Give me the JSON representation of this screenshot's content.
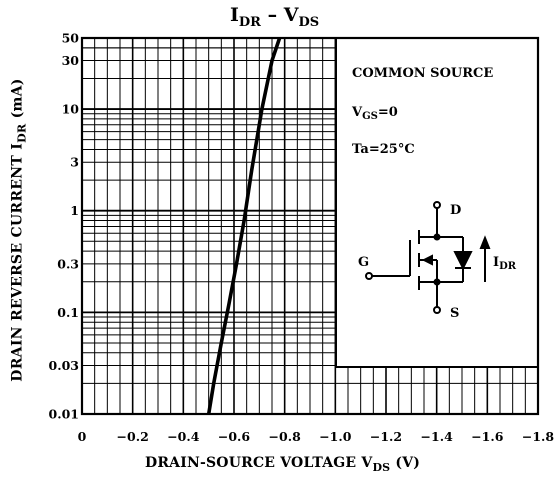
{
  "chart_data": {
    "type": "line",
    "title": {
      "main": "I",
      "main_sub": "DR",
      "sep": " – ",
      "main2": "V",
      "main2_sub": "DS"
    },
    "xlabel": {
      "text": "DRAIN-SOURCE VOLTAGE  V",
      "sub": "DS",
      "unit": "  (V)"
    },
    "ylabel": {
      "text": "DRAIN REVERSE CURRENT  I",
      "sub": "DR",
      "unit": "  (mA)"
    },
    "x_scale": "linear",
    "xlim": [
      0,
      -1.8
    ],
    "x_ticks": [
      0,
      -0.2,
      -0.4,
      -0.6,
      -0.8,
      -1.0,
      -1.2,
      -1.4,
      -1.6,
      -1.8
    ],
    "x_tick_labels": [
      "0",
      "−0.2",
      "−0.4",
      "−0.6",
      "−0.8",
      "−1.0",
      "−1.2",
      "−1.4",
      "−1.6",
      "−1.8"
    ],
    "y_scale": "log",
    "ylim": [
      0.01,
      50
    ],
    "y_ticks": [
      0.01,
      0.03,
      0.1,
      0.3,
      1,
      3,
      10,
      30,
      50
    ],
    "y_tick_labels": [
      "0.01",
      "0.03",
      "0.1",
      "0.3",
      "1",
      "3",
      "10",
      "30",
      "50"
    ],
    "grid": true,
    "series": [
      {
        "x": [
          -0.5,
          -0.52,
          -0.55,
          -0.58,
          -0.61,
          -0.64,
          -0.67,
          -0.71,
          -0.75,
          -0.78
        ],
        "y": [
          0.01,
          0.02,
          0.05,
          0.12,
          0.3,
          0.8,
          2.5,
          10,
          30,
          50
        ]
      }
    ],
    "annotations": [
      {
        "text": "COMMON SOURCE"
      },
      {
        "text": "V",
        "sub": "GS",
        "after": "=0"
      },
      {
        "text": "Ta=25°C"
      }
    ],
    "circuit_labels": {
      "drain": "D",
      "gate": "G",
      "source": "S",
      "current": "I",
      "current_sub": "DR"
    }
  }
}
